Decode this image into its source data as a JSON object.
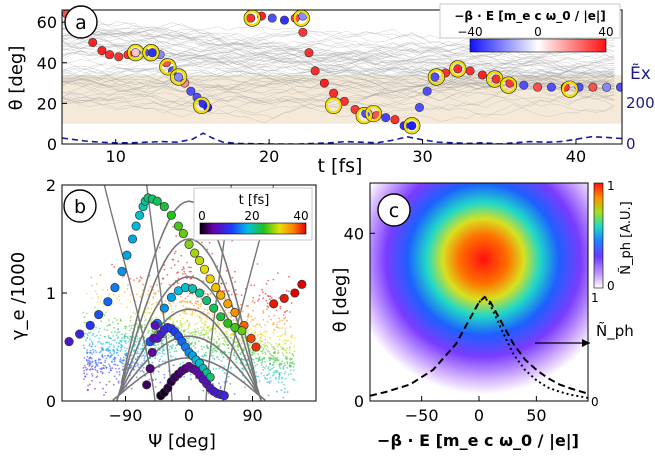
{
  "chart_data": [
    {
      "panel": "a",
      "type": "scatter",
      "xlabel": "t  [fs]",
      "ylabel": "θ [deg]",
      "y2label": "Ẽx",
      "xlim": [
        6.5,
        43
      ],
      "ylim": [
        0,
        66
      ],
      "xticks": [
        "10",
        "20",
        "30",
        "40"
      ],
      "yticks": [
        "0",
        "20",
        "40",
        "60"
      ],
      "y2ticks": [
        "0",
        "200"
      ],
      "band": [
        10,
        34
      ],
      "colorbar": {
        "label": "−β · E [m_e c ω_0 / |e|]",
        "min": "−40",
        "mid": "0",
        "max": "40"
      },
      "series": [
        {
          "x": [
            6.8,
            7.4,
            7.9,
            8.5,
            9.1,
            9.6,
            10.2,
            10.8,
            11.3,
            11.9,
            12.4,
            12.9,
            13.3,
            13.7,
            14.1,
            14.5,
            14.9,
            15.3,
            15.7,
            16.0
          ],
          "y": [
            64,
            60,
            55,
            50,
            46,
            44,
            43,
            44,
            45,
            45,
            45,
            44,
            40,
            36,
            33,
            30,
            26,
            23,
            20,
            18
          ],
          "y_is_color": [
            30,
            35,
            38,
            38,
            38,
            36,
            35,
            36,
            10,
            -30,
            -35,
            -20,
            30,
            -30,
            -20,
            20,
            -30,
            -30,
            -35,
            -38
          ]
        },
        {
          "x": [
            18.8,
            19.5,
            20.2,
            21.0,
            21.7,
            22.2
          ],
          "y": [
            62,
            63,
            62,
            61,
            62,
            63
          ],
          "y_is_color": [
            35,
            38,
            -30,
            -35,
            30,
            -20
          ]
        },
        {
          "x": [
            22.2,
            22.6,
            23.0,
            23.6,
            24.2,
            24.9,
            25.6,
            26.3,
            27.0,
            27.6,
            28.2,
            28.8,
            29.3,
            29.8,
            30.3,
            30.8
          ],
          "y": [
            55,
            45,
            36,
            30,
            25,
            21,
            17,
            15,
            14,
            13,
            12,
            9,
            9,
            18,
            26,
            33
          ],
          "y_is_color": [
            35,
            35,
            36,
            38,
            36,
            35,
            34,
            -30,
            30,
            -32,
            36,
            -35,
            -38,
            -30,
            -30,
            -30
          ]
        },
        {
          "x": [
            31.5,
            32.3,
            33.1,
            33.9,
            34.8,
            35.7,
            36.6,
            37.5,
            38.4,
            39.3,
            40.2,
            41.1,
            42.0,
            42.9
          ],
          "y": [
            35,
            37,
            36,
            34,
            32,
            30,
            29,
            28,
            28,
            28,
            28,
            28,
            28,
            28
          ],
          "y_is_color": [
            35,
            36,
            35,
            38,
            36,
            34,
            -30,
            30,
            -30,
            35,
            -30,
            30,
            -20,
            -30
          ]
        }
      ],
      "highlighted_points": [
        [
          11.3,
          45
        ],
        [
          12.3,
          45
        ],
        [
          13.4,
          38
        ],
        [
          14.1,
          33
        ],
        [
          15.6,
          19
        ],
        [
          18.9,
          62
        ],
        [
          22.1,
          62
        ],
        [
          24.2,
          19
        ],
        [
          26.2,
          14
        ],
        [
          26.8,
          15
        ],
        [
          29.3,
          9
        ],
        [
          30.9,
          33
        ],
        [
          32.3,
          37
        ],
        [
          34.7,
          32
        ],
        [
          35.6,
          29
        ],
        [
          39.6,
          27
        ]
      ],
      "dashed_line": {
        "x": [
          6.5,
          8,
          9,
          10,
          11,
          12,
          13,
          14,
          15,
          15.7,
          16.3,
          17,
          18,
          20,
          22,
          24,
          25,
          26,
          27,
          28,
          29,
          30,
          31,
          32,
          33,
          34,
          35,
          36,
          37,
          38,
          39,
          40,
          41,
          42,
          43
        ],
        "y2": [
          10,
          5,
          3,
          2,
          2,
          3,
          4,
          3,
          8,
          18,
          10,
          3,
          1,
          0,
          0,
          2,
          4,
          3,
          2,
          6,
          12,
          7,
          3,
          2,
          1,
          2,
          0,
          2,
          4,
          3,
          4,
          8,
          12,
          11,
          9
        ]
      }
    },
    {
      "panel": "b",
      "type": "scatter",
      "xlabel": "Ψ [deg]",
      "ylabel": "γ_e /1000",
      "xlim": [
        -180,
        180
      ],
      "ylim": [
        0,
        2
      ],
      "xticks": [
        "−90",
        "0",
        "90"
      ],
      "yticks": [
        "0",
        "1",
        "2"
      ],
      "colorbar": {
        "label": "t [fs]",
        "ticks": [
          "0",
          "20",
          "40"
        ]
      },
      "series": [
        {
          "x": [
            -170,
            -155,
            -140,
            -128,
            -115,
            -105,
            -95,
            -88,
            -80,
            -75,
            -70,
            -65,
            -62,
            -58,
            -52,
            -45,
            -35,
            -25,
            -15,
            -8,
            0,
            8,
            15,
            22,
            30,
            38,
            45,
            55,
            65,
            78,
            88,
            95
          ],
          "y": [
            0.55,
            0.62,
            0.7,
            0.8,
            0.92,
            1.05,
            1.2,
            1.35,
            1.5,
            1.62,
            1.72,
            1.8,
            1.85,
            1.88,
            1.87,
            1.85,
            1.8,
            1.72,
            1.62,
            1.55,
            1.45,
            1.37,
            1.3,
            1.22,
            1.13,
            1.05,
            0.98,
            0.9,
            0.82,
            0.7,
            0.58,
            0.5
          ],
          "t": [
            8,
            10,
            12,
            14,
            15,
            16,
            17,
            18,
            18,
            19,
            20,
            21,
            22,
            23,
            23,
            24,
            25,
            26,
            27,
            28,
            29,
            30,
            31,
            32,
            33,
            34,
            35,
            36,
            37,
            39,
            40,
            41
          ]
        },
        {
          "x": [
            -55,
            -45,
            -35,
            -25,
            -15,
            -5,
            5,
            15,
            25,
            35,
            45,
            55,
            65,
            75
          ],
          "y": [
            0.55,
            0.72,
            0.86,
            0.96,
            1.02,
            1.05,
            1.04,
            1.0,
            0.93,
            0.86,
            0.78,
            0.72,
            0.68,
            0.65
          ],
          "t": [
            14,
            16,
            17,
            18,
            19,
            20,
            21,
            22,
            23,
            24,
            25,
            26,
            27,
            28
          ]
        },
        {
          "x": [
            -60,
            -55,
            -52,
            -50,
            -48,
            -45,
            -40,
            -35,
            -30,
            -25,
            -20,
            -15,
            -10,
            -5,
            0,
            5,
            10,
            15,
            20,
            25,
            30
          ],
          "y": [
            0.15,
            0.3,
            0.45,
            0.58,
            0.7,
            0.58,
            0.62,
            0.66,
            0.68,
            0.67,
            0.64,
            0.6,
            0.55,
            0.5,
            0.45,
            0.42,
            0.38,
            0.35,
            0.3,
            0.26,
            0.22
          ],
          "t": [
            3,
            4,
            5,
            6,
            7,
            8,
            9,
            10,
            11,
            12,
            13,
            14,
            15,
            16,
            17,
            18,
            19,
            20,
            21,
            22,
            23
          ]
        },
        {
          "x": [
            -40,
            -35,
            -30,
            -25,
            -20,
            -15,
            -10,
            -5,
            0,
            5,
            10,
            15,
            20,
            25,
            30,
            35,
            40,
            45,
            50
          ],
          "y": [
            0.05,
            0.08,
            0.12,
            0.18,
            0.22,
            0.25,
            0.28,
            0.3,
            0.32,
            0.3,
            0.28,
            0.24,
            0.2,
            0.16,
            0.12,
            0.09,
            0.07,
            0.06,
            0.05
          ],
          "t": [
            1,
            1,
            2,
            2,
            3,
            3,
            4,
            4,
            5,
            5,
            6,
            6,
            7,
            7,
            8,
            8,
            9,
            9,
            10
          ]
        },
        {
          "x": [
            120,
            135,
            150,
            160
          ],
          "y": [
            0.9,
            0.95,
            1.0,
            1.08
          ],
          "t": [
            42,
            42,
            43,
            43
          ]
        }
      ]
    },
    {
      "panel": "c",
      "type": "heatmap",
      "xlabel": "−β · E [m_e c ω_0 / |e|]",
      "ylabel": "θ [deg]",
      "xlim": [
        -95,
        95
      ],
      "ylim": [
        0,
        52
      ],
      "xticks": [
        "−50",
        "0",
        "50"
      ],
      "yticks": [
        "0",
        "40"
      ],
      "colorbar": {
        "label": "Ñ_ph [A.U.]",
        "min": "0",
        "max": "1"
      },
      "annotation": "Ñ_ph",
      "secondary_axis_ticks": [
        "0",
        "1"
      ],
      "dashed_curve": {
        "x": [
          -95,
          -80,
          -60,
          -40,
          -20,
          -10,
          0,
          5,
          10,
          20,
          30,
          40,
          50,
          60,
          70,
          80,
          95
        ],
        "y": [
          0.05,
          0.09,
          0.16,
          0.3,
          0.55,
          0.75,
          0.95,
          1.0,
          0.95,
          0.75,
          0.55,
          0.4,
          0.3,
          0.22,
          0.16,
          0.12,
          0.07
        ]
      },
      "dotted_curve": {
        "x": [
          0,
          5,
          10,
          20,
          30,
          40,
          50,
          60,
          70,
          80,
          95
        ],
        "y": [
          0.95,
          1.0,
          0.92,
          0.68,
          0.45,
          0.3,
          0.2,
          0.13,
          0.09,
          0.06,
          0.03
        ]
      }
    }
  ],
  "labels": {
    "a": "a",
    "b": "b",
    "c": "c"
  }
}
